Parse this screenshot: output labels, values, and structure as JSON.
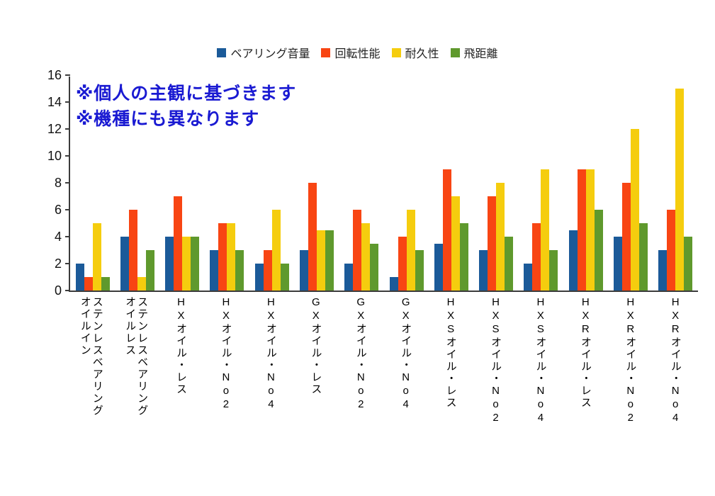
{
  "chart_data": {
    "type": "bar",
    "title": "",
    "xlabel": "",
    "ylabel": "",
    "ylim": [
      0,
      16
    ],
    "ytick_step": 2,
    "grid": false,
    "legend_position": "top",
    "categories": [
      "オイルイン\nステンレスベアリング",
      "オイルレス\nステンレスベアリング",
      "HXオイル・レス",
      "HXオイル・No2",
      "HXオイル・No4",
      "GXオイル・レス",
      "GXオイル・No2",
      "GXオイル・No4",
      "HXSオイル・レス",
      "HXSオイル・No2",
      "HXSオイル・No4",
      "HXRオイル・レス",
      "HXRオイル・No2",
      "HXRオイル・No4"
    ],
    "series": [
      {
        "key": "bearing-noise",
        "name": "ベアリング音量",
        "color": "#1b5a99",
        "values": [
          2,
          4,
          4,
          3,
          2,
          3,
          2,
          1,
          3.5,
          3,
          2,
          4.5,
          4,
          3
        ]
      },
      {
        "key": "rotation-performance",
        "name": "回転性能",
        "color": "#f84513",
        "values": [
          1,
          6,
          7,
          5,
          3,
          8,
          6,
          4,
          9,
          7,
          5,
          9,
          8,
          6
        ]
      },
      {
        "key": "durability",
        "name": "耐久性",
        "color": "#f5cd0e",
        "values": [
          5,
          1,
          4,
          5,
          6,
          4.5,
          5,
          6,
          7,
          8,
          9,
          9,
          12,
          15
        ]
      },
      {
        "key": "flight-distance",
        "name": "飛距離",
        "color": "#5f992d",
        "values": [
          1,
          3,
          4,
          3,
          2,
          4.5,
          3.5,
          3,
          5,
          4,
          3,
          6,
          5,
          4
        ]
      }
    ]
  },
  "annotations": {
    "line1": "※個人の主観に基づきます",
    "line2": "※機種にも異なります",
    "color": "#1a1ad2"
  }
}
